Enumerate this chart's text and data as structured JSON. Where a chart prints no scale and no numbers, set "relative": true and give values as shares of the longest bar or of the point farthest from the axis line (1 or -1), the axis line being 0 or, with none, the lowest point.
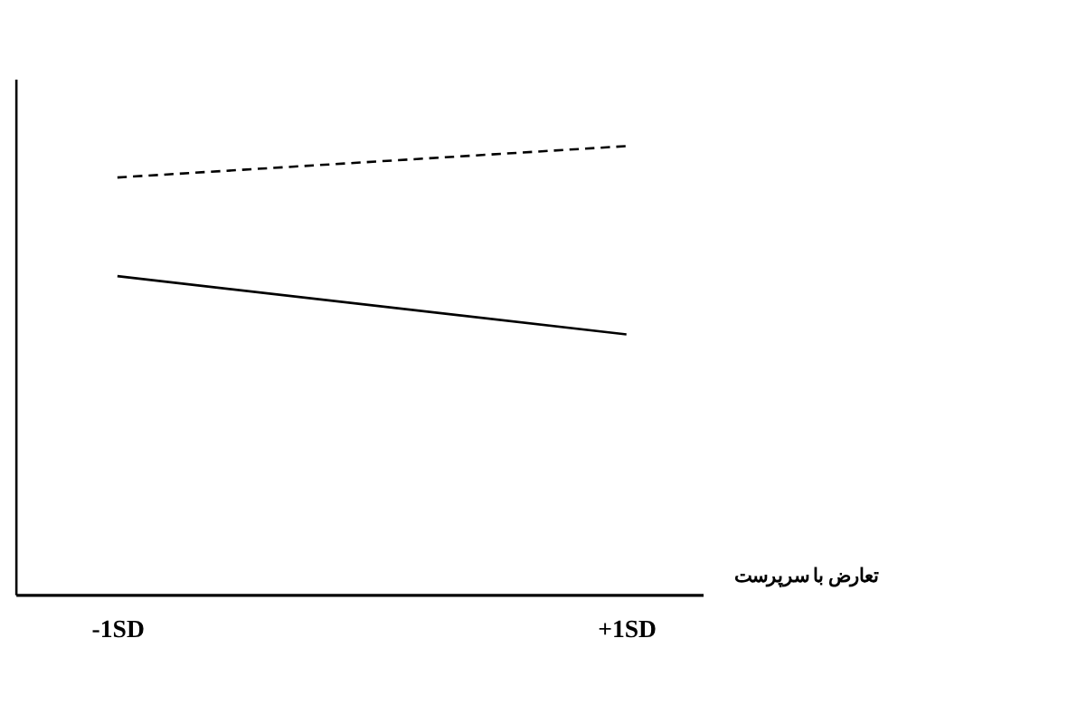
{
  "chart_data": {
    "type": "line",
    "relative": true,
    "xlabel": "تعارض با سرپرست",
    "categories": [
      "-1SD",
      "+1SD"
    ],
    "grid": false,
    "marker": "none",
    "series": [
      {
        "color": "#000000",
        "line_style": "dashed",
        "values": [
          0.93,
          1.0
        ]
      },
      {
        "color": "#000000",
        "line_style": "solid",
        "values": [
          0.71,
          0.58
        ]
      }
    ]
  }
}
